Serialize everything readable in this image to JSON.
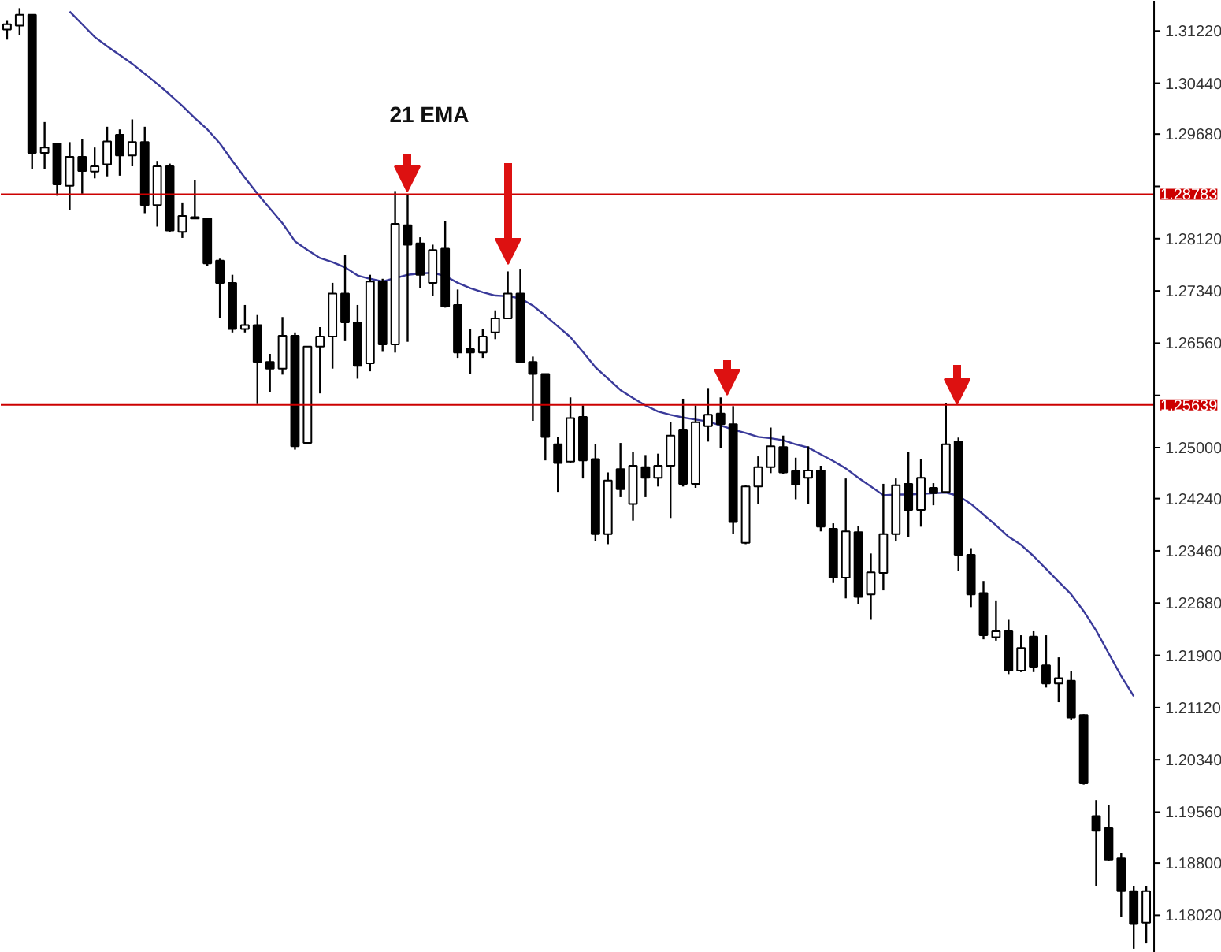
{
  "chart_data": {
    "type": "candlestick",
    "categories": [
      null,
      null,
      null,
      null,
      null,
      null,
      null,
      null,
      null,
      null,
      null,
      null,
      null,
      null,
      null,
      null,
      null,
      null,
      null,
      null,
      null,
      null,
      null,
      null,
      null,
      null,
      null,
      null,
      null,
      null,
      null,
      null,
      null,
      null,
      null,
      null,
      null,
      null,
      null,
      null,
      null,
      null,
      null,
      null,
      null,
      null,
      null,
      null,
      null,
      null,
      null,
      null,
      null,
      null,
      null,
      null,
      null,
      null,
      null,
      null,
      null,
      null,
      null,
      null,
      null,
      null,
      null,
      null,
      null,
      null,
      null,
      null,
      null,
      null,
      null,
      null,
      null,
      null,
      null,
      null,
      null,
      null,
      null,
      null,
      null,
      null,
      null,
      null,
      null,
      null,
      null,
      null
    ],
    "ohlc": [
      [
        1.3124,
        1.3137,
        1.3109,
        1.3132
      ],
      [
        1.313,
        1.3156,
        1.3116,
        1.3146
      ],
      [
        1.3146,
        1.3146,
        1.2916,
        1.294
      ],
      [
        1.294,
        1.2986,
        1.2916,
        1.2948
      ],
      [
        1.2954,
        1.2954,
        1.2876,
        1.2893
      ],
      [
        1.2891,
        1.2956,
        1.2855,
        1.2934
      ],
      [
        1.2934,
        1.296,
        1.2879,
        1.2913
      ],
      [
        1.2912,
        1.2948,
        1.2902,
        1.292
      ],
      [
        1.2923,
        1.2979,
        1.2905,
        1.2957
      ],
      [
        1.2967,
        1.2975,
        1.2906,
        1.2936
      ],
      [
        1.2936,
        1.299,
        1.292,
        1.2956
      ],
      [
        1.2956,
        1.2979,
        1.285,
        1.2862
      ],
      [
        1.2862,
        1.2928,
        1.283,
        1.292
      ],
      [
        1.292,
        1.2924,
        1.2822,
        1.2824
      ],
      [
        1.2822,
        1.2866,
        1.2813,
        1.2846
      ],
      [
        1.2844,
        1.2899,
        1.2842,
        1.2842
      ],
      [
        1.2842,
        1.2842,
        1.2771,
        1.2775
      ],
      [
        1.2779,
        1.2782,
        1.2693,
        1.2746
      ],
      [
        1.2746,
        1.2758,
        1.2672,
        1.2677
      ],
      [
        1.2677,
        1.2713,
        1.2672,
        1.2683
      ],
      [
        1.2683,
        1.2698,
        1.2565,
        1.2628
      ],
      [
        1.2628,
        1.264,
        1.2583,
        1.2618
      ],
      [
        1.2618,
        1.2695,
        1.2609,
        1.2667
      ],
      [
        1.2667,
        1.2672,
        1.2497,
        1.2502
      ],
      [
        1.2507,
        1.2651,
        1.2505,
        1.2651
      ],
      [
        1.2651,
        1.268,
        1.2581,
        1.2666
      ],
      [
        1.2666,
        1.2746,
        1.2618,
        1.273
      ],
      [
        1.273,
        1.2788,
        1.2659,
        1.2687
      ],
      [
        1.2687,
        1.2713,
        1.2603,
        1.2622
      ],
      [
        1.2626,
        1.2758,
        1.2614,
        1.2748
      ],
      [
        1.2748,
        1.2752,
        1.2643,
        1.2654
      ],
      [
        1.2654,
        1.2883,
        1.2642,
        1.2834
      ],
      [
        1.2832,
        1.2878,
        1.2658,
        1.2803
      ],
      [
        1.2805,
        1.2814,
        1.2738,
        1.2758
      ],
      [
        1.2746,
        1.2803,
        1.2727,
        1.2795
      ],
      [
        1.2797,
        1.2838,
        1.2709,
        1.2711
      ],
      [
        1.2713,
        1.2736,
        1.2634,
        1.2642
      ],
      [
        1.2647,
        1.2677,
        1.261,
        1.2642
      ],
      [
        1.2642,
        1.2677,
        1.2634,
        1.2666
      ],
      [
        1.2672,
        1.2705,
        1.2662,
        1.2693
      ],
      [
        1.2693,
        1.2763,
        1.2693,
        1.273
      ],
      [
        1.273,
        1.2767,
        1.2626,
        1.2628
      ],
      [
        1.2628,
        1.2636,
        1.254,
        1.261
      ],
      [
        1.261,
        1.261,
        1.2481,
        1.2516
      ],
      [
        1.2505,
        1.2516,
        1.2434,
        1.2477
      ],
      [
        1.2479,
        1.2575,
        1.2477,
        1.2544
      ],
      [
        1.2546,
        1.2563,
        1.2454,
        1.2481
      ],
      [
        1.2483,
        1.2505,
        1.2361,
        1.2371
      ],
      [
        1.2371,
        1.2463,
        1.2356,
        1.2451
      ],
      [
        1.2468,
        1.2507,
        1.2426,
        1.2438
      ],
      [
        1.2416,
        1.2494,
        1.2391,
        1.2473
      ],
      [
        1.2471,
        1.2489,
        1.2426,
        1.2455
      ],
      [
        1.2455,
        1.2491,
        1.2442,
        1.2473
      ],
      [
        1.2473,
        1.2538,
        1.2395,
        1.2518
      ],
      [
        1.2527,
        1.2573,
        1.2442,
        1.2446
      ],
      [
        1.2446,
        1.2563,
        1.244,
        1.2538
      ],
      [
        1.2532,
        1.2589,
        1.2509,
        1.2549
      ],
      [
        1.2551,
        1.2575,
        1.2499,
        1.2535
      ],
      [
        1.2535,
        1.2562,
        1.2371,
        1.2389
      ],
      [
        1.2358,
        1.2444,
        1.2356,
        1.2442
      ],
      [
        1.2442,
        1.2487,
        1.2416,
        1.2471
      ],
      [
        1.2471,
        1.253,
        1.2462,
        1.2502
      ],
      [
        1.2501,
        1.2518,
        1.246,
        1.2463
      ],
      [
        1.2465,
        1.2485,
        1.2423,
        1.2445
      ],
      [
        1.2455,
        1.2502,
        1.2416,
        1.2466
      ],
      [
        1.2466,
        1.2473,
        1.2375,
        1.2382
      ],
      [
        1.2379,
        1.2387,
        1.2298,
        1.2306
      ],
      [
        1.2306,
        1.2454,
        1.2275,
        1.2375
      ],
      [
        1.2374,
        1.2383,
        1.2267,
        1.2277
      ],
      [
        1.2281,
        1.2342,
        1.2243,
        1.2314
      ],
      [
        1.2313,
        1.2446,
        1.2287,
        1.2371
      ],
      [
        1.2371,
        1.2454,
        1.236,
        1.2444
      ],
      [
        1.2446,
        1.2493,
        1.2366,
        1.2407
      ],
      [
        1.2407,
        1.2483,
        1.2382,
        1.2455
      ],
      [
        1.244,
        1.2447,
        1.2414,
        1.2432
      ],
      [
        1.2434,
        1.2567,
        1.2432,
        1.2505
      ],
      [
        1.2509,
        1.2515,
        1.2316,
        1.234
      ],
      [
        1.234,
        1.235,
        1.2262,
        1.2281
      ],
      [
        1.2283,
        1.2301,
        1.2214,
        1.222
      ],
      [
        1.2217,
        1.2272,
        1.2212,
        1.2226
      ],
      [
        1.2226,
        1.2243,
        1.2162,
        1.2167
      ],
      [
        1.2167,
        1.222,
        1.2165,
        1.2201
      ],
      [
        1.2218,
        1.2226,
        1.2165,
        1.2173
      ],
      [
        1.2175,
        1.222,
        1.2142,
        1.2148
      ],
      [
        1.2148,
        1.2187,
        1.212,
        1.2156
      ],
      [
        1.2152,
        1.2167,
        1.2093,
        1.2097
      ],
      [
        1.2101,
        1.2102,
        1.1997,
        1.1999
      ],
      [
        1.195,
        1.1974,
        1.1846,
        1.1928
      ],
      [
        1.1932,
        1.1967,
        1.1883,
        1.1885
      ],
      [
        1.1887,
        1.1895,
        1.1799,
        1.1838
      ],
      [
        1.1838,
        1.1846,
        1.1752,
        1.1789
      ],
      [
        1.1791,
        1.1846,
        1.176,
        1.1838
      ]
    ],
    "series": [
      {
        "type": "line",
        "color": "#3a3a9a",
        "values": [
          null,
          null,
          null,
          null,
          null,
          1.3151,
          1.3132,
          1.3113,
          1.3099,
          1.3086,
          1.3073,
          1.3058,
          1.3043,
          1.3027,
          1.301,
          1.2992,
          1.2975,
          1.2954,
          1.2928,
          1.2903,
          1.2879,
          1.2857,
          1.2835,
          1.2808,
          1.2795,
          1.2783,
          1.2777,
          1.2769,
          1.2757,
          1.2752,
          1.2748,
          1.2753,
          1.2758,
          1.276,
          1.2761,
          1.2756,
          1.2746,
          1.2738,
          1.2732,
          1.2727,
          1.2726,
          1.2723,
          1.2712,
          1.2697,
          1.2681,
          1.2665,
          1.2643,
          1.262,
          1.2603,
          1.2586,
          1.2574,
          1.2563,
          1.2554,
          1.2549,
          1.2545,
          1.2542,
          1.2539,
          1.2533,
          1.2527,
          1.2522,
          1.2516,
          1.2514,
          1.2511,
          1.2505,
          1.25,
          1.249,
          1.248,
          1.2469,
          1.2455,
          1.2442,
          1.2429,
          1.243,
          1.243,
          1.2431,
          1.2432,
          1.2433,
          1.2428,
          1.2416,
          1.24,
          1.2384,
          1.2367,
          1.2355,
          1.2338,
          1.2319,
          1.23,
          1.2281,
          1.2256,
          1.2227,
          1.2193,
          1.2159,
          1.2129,
          null
        ]
      }
    ],
    "ylim": [
      1.1746,
      1.3167
    ],
    "yticks": [
      {
        "value": 1.3122,
        "label": "1.31220"
      },
      {
        "value": 1.3044,
        "label": "1.30440"
      },
      {
        "value": 1.2968,
        "label": "1.29680"
      },
      {
        "value": 1.289,
        "label": null
      },
      {
        "value": 1.2812,
        "label": "1.28120"
      },
      {
        "value": 1.2734,
        "label": "1.27340"
      },
      {
        "value": 1.2656,
        "label": "1.26560"
      },
      {
        "value": 1.2578,
        "label": null
      },
      {
        "value": 1.25,
        "label": "1.25000"
      },
      {
        "value": 1.2424,
        "label": "1.24240"
      },
      {
        "value": 1.2346,
        "label": "1.23460"
      },
      {
        "value": 1.2268,
        "label": "1.22680"
      },
      {
        "value": 1.219,
        "label": "1.21900"
      },
      {
        "value": 1.2112,
        "label": "1.21120"
      },
      {
        "value": 1.2034,
        "label": "1.20340"
      },
      {
        "value": 1.1956,
        "label": "1.19560"
      },
      {
        "value": 1.188,
        "label": "1.18800"
      },
      {
        "value": 1.1802,
        "label": "1.18020"
      }
    ],
    "ref_lines": [
      {
        "axis": "y",
        "value": 1.28783,
        "label": "1.28783",
        "color": "#cc0000"
      },
      {
        "axis": "y",
        "value": 1.25639,
        "label": "1.25639",
        "color": "#cc0000"
      }
    ],
    "annotations": [
      "21 EMA"
    ],
    "tick_labels": "y"
  }
}
